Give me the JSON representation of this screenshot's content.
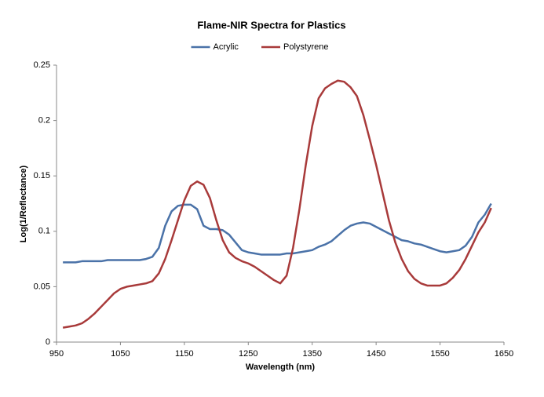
{
  "chart_data": {
    "type": "line",
    "title": "Flame-NIR Spectra for Plastics",
    "x_label": "Wavelength (nm)",
    "y_label": "Log(1/Reflectance)",
    "x": [
      960,
      970,
      980,
      990,
      1000,
      1010,
      1020,
      1030,
      1040,
      1050,
      1060,
      1070,
      1080,
      1090,
      1100,
      1110,
      1120,
      1130,
      1140,
      1150,
      1160,
      1170,
      1180,
      1190,
      1200,
      1210,
      1220,
      1230,
      1240,
      1250,
      1260,
      1270,
      1280,
      1290,
      1300,
      1310,
      1320,
      1330,
      1340,
      1350,
      1360,
      1370,
      1380,
      1390,
      1400,
      1410,
      1420,
      1430,
      1440,
      1450,
      1460,
      1470,
      1480,
      1490,
      1500,
      1510,
      1520,
      1530,
      1540,
      1550,
      1560,
      1570,
      1580,
      1590,
      1600,
      1610,
      1620,
      1630
    ],
    "series": [
      {
        "name": "Acrylic",
        "color": "#4a72a8",
        "values": [
          0.072,
          0.072,
          0.072,
          0.073,
          0.073,
          0.073,
          0.073,
          0.074,
          0.074,
          0.074,
          0.074,
          0.074,
          0.074,
          0.075,
          0.077,
          0.085,
          0.105,
          0.118,
          0.123,
          0.124,
          0.124,
          0.12,
          0.105,
          0.102,
          0.102,
          0.101,
          0.097,
          0.09,
          0.083,
          0.081,
          0.08,
          0.079,
          0.079,
          0.079,
          0.079,
          0.08,
          0.08,
          0.081,
          0.082,
          0.083,
          0.086,
          0.088,
          0.091,
          0.096,
          0.101,
          0.105,
          0.107,
          0.108,
          0.107,
          0.104,
          0.101,
          0.098,
          0.095,
          0.092,
          0.091,
          0.089,
          0.088,
          0.086,
          0.084,
          0.082,
          0.081,
          0.082,
          0.083,
          0.087,
          0.095,
          0.108,
          0.115,
          0.125
        ]
      },
      {
        "name": "Polystyrene",
        "color": "#a83a3a",
        "values": [
          0.013,
          0.014,
          0.015,
          0.017,
          0.021,
          0.026,
          0.032,
          0.038,
          0.044,
          0.048,
          0.05,
          0.051,
          0.052,
          0.053,
          0.055,
          0.062,
          0.075,
          0.092,
          0.11,
          0.128,
          0.141,
          0.145,
          0.142,
          0.13,
          0.11,
          0.092,
          0.081,
          0.076,
          0.073,
          0.071,
          0.068,
          0.064,
          0.06,
          0.056,
          0.053,
          0.06,
          0.085,
          0.12,
          0.16,
          0.195,
          0.22,
          0.229,
          0.233,
          0.236,
          0.235,
          0.23,
          0.222,
          0.205,
          0.183,
          0.16,
          0.135,
          0.11,
          0.09,
          0.075,
          0.064,
          0.057,
          0.053,
          0.051,
          0.051,
          0.051,
          0.053,
          0.058,
          0.065,
          0.075,
          0.087,
          0.099,
          0.108,
          0.121
        ]
      }
    ],
    "xlim": [
      950,
      1650
    ],
    "xticks": [
      950,
      1050,
      1150,
      1250,
      1350,
      1450,
      1550,
      1650
    ],
    "ylim": [
      0,
      0.25
    ],
    "yticks": [
      0,
      0.05,
      0.1,
      0.15,
      0.2,
      0.25
    ],
    "legend": "top",
    "grid": false
  }
}
